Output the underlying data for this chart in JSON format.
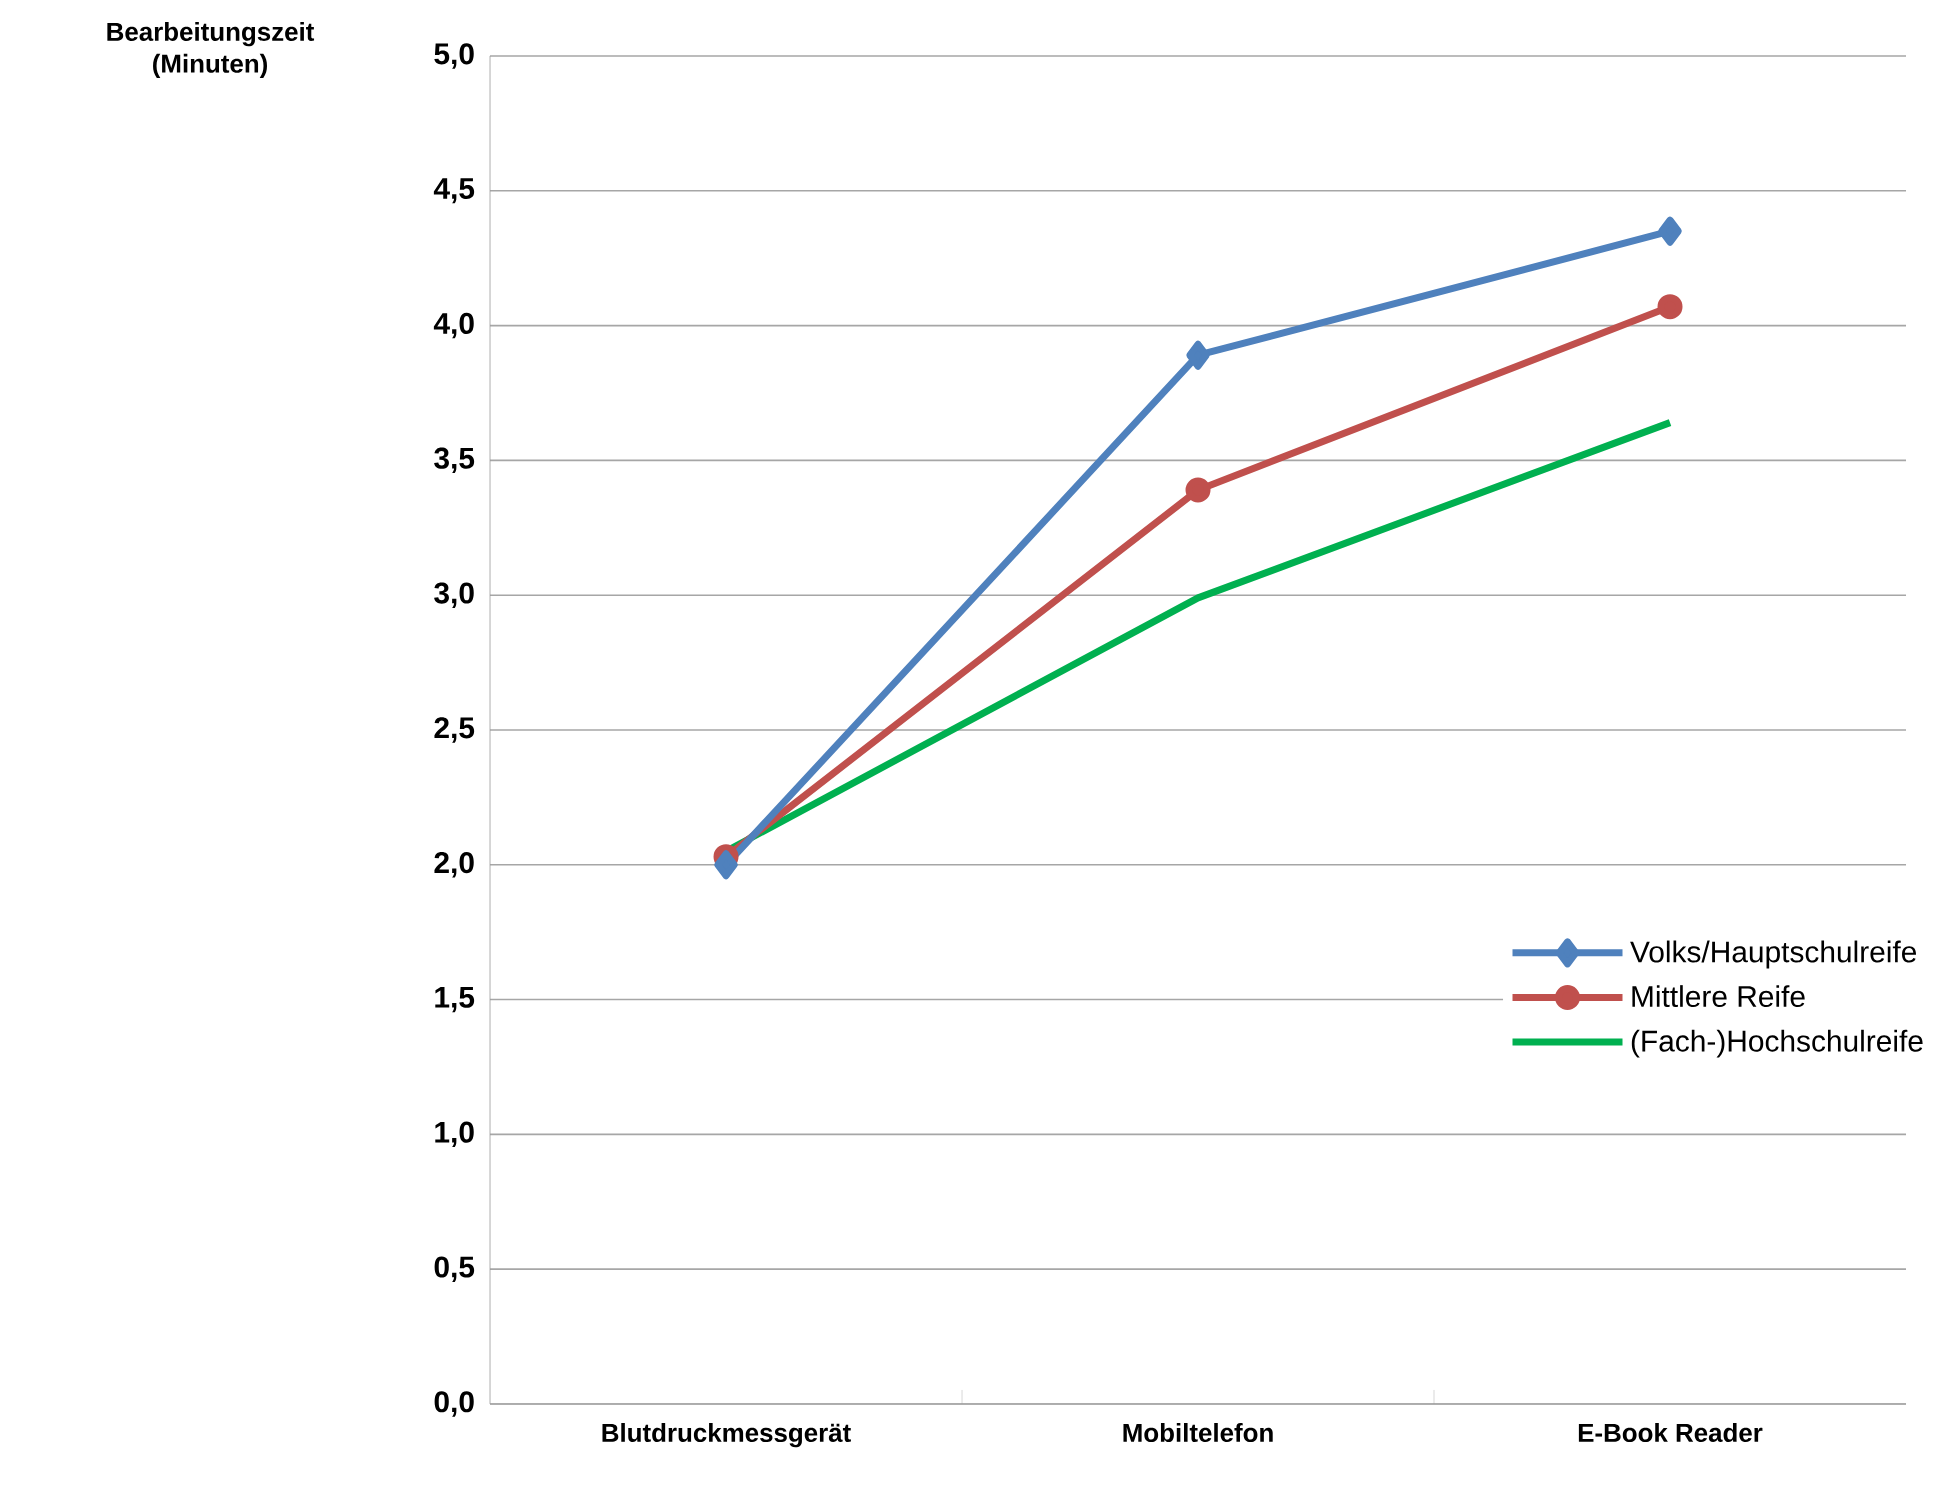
{
  "chart_data": {
    "type": "line",
    "ylabel": "Bearbeitungszeit (Minuten)",
    "categories": [
      "Blutdruckmessgerät",
      "Mobiltelefon",
      "E-Book Reader"
    ],
    "series": [
      {
        "name": "Volks/Hauptschulreife",
        "color": "#4f81bd",
        "values": [
          2.0,
          3.89,
          4.35
        ],
        "marker": "diamond"
      },
      {
        "name": "Mittlere Reife",
        "color": "#c0504d",
        "values": [
          2.03,
          3.39,
          4.07
        ],
        "marker": "circle"
      },
      {
        "name": "(Fach-)Hochschulreife",
        "color": "#00b050",
        "values": [
          2.05,
          2.99,
          3.64
        ],
        "marker": "none"
      }
    ],
    "ylim": [
      0,
      5
    ],
    "yticks": [
      {
        "value": 0,
        "label": "0,0"
      },
      {
        "value": 0.5,
        "label": "0,5"
      },
      {
        "value": 1,
        "label": "1,0"
      },
      {
        "value": 1.5,
        "label": "1,5"
      },
      {
        "value": 2,
        "label": "2,0"
      },
      {
        "value": 2.5,
        "label": "2,5"
      },
      {
        "value": 3,
        "label": "3,0"
      },
      {
        "value": 3.5,
        "label": "3,5"
      },
      {
        "value": 4,
        "label": "4,0"
      },
      {
        "value": 4.5,
        "label": "4,5"
      },
      {
        "value": 5,
        "label": "5,0"
      }
    ],
    "grid": "y",
    "legend": "right",
    "line_style": "solid"
  }
}
